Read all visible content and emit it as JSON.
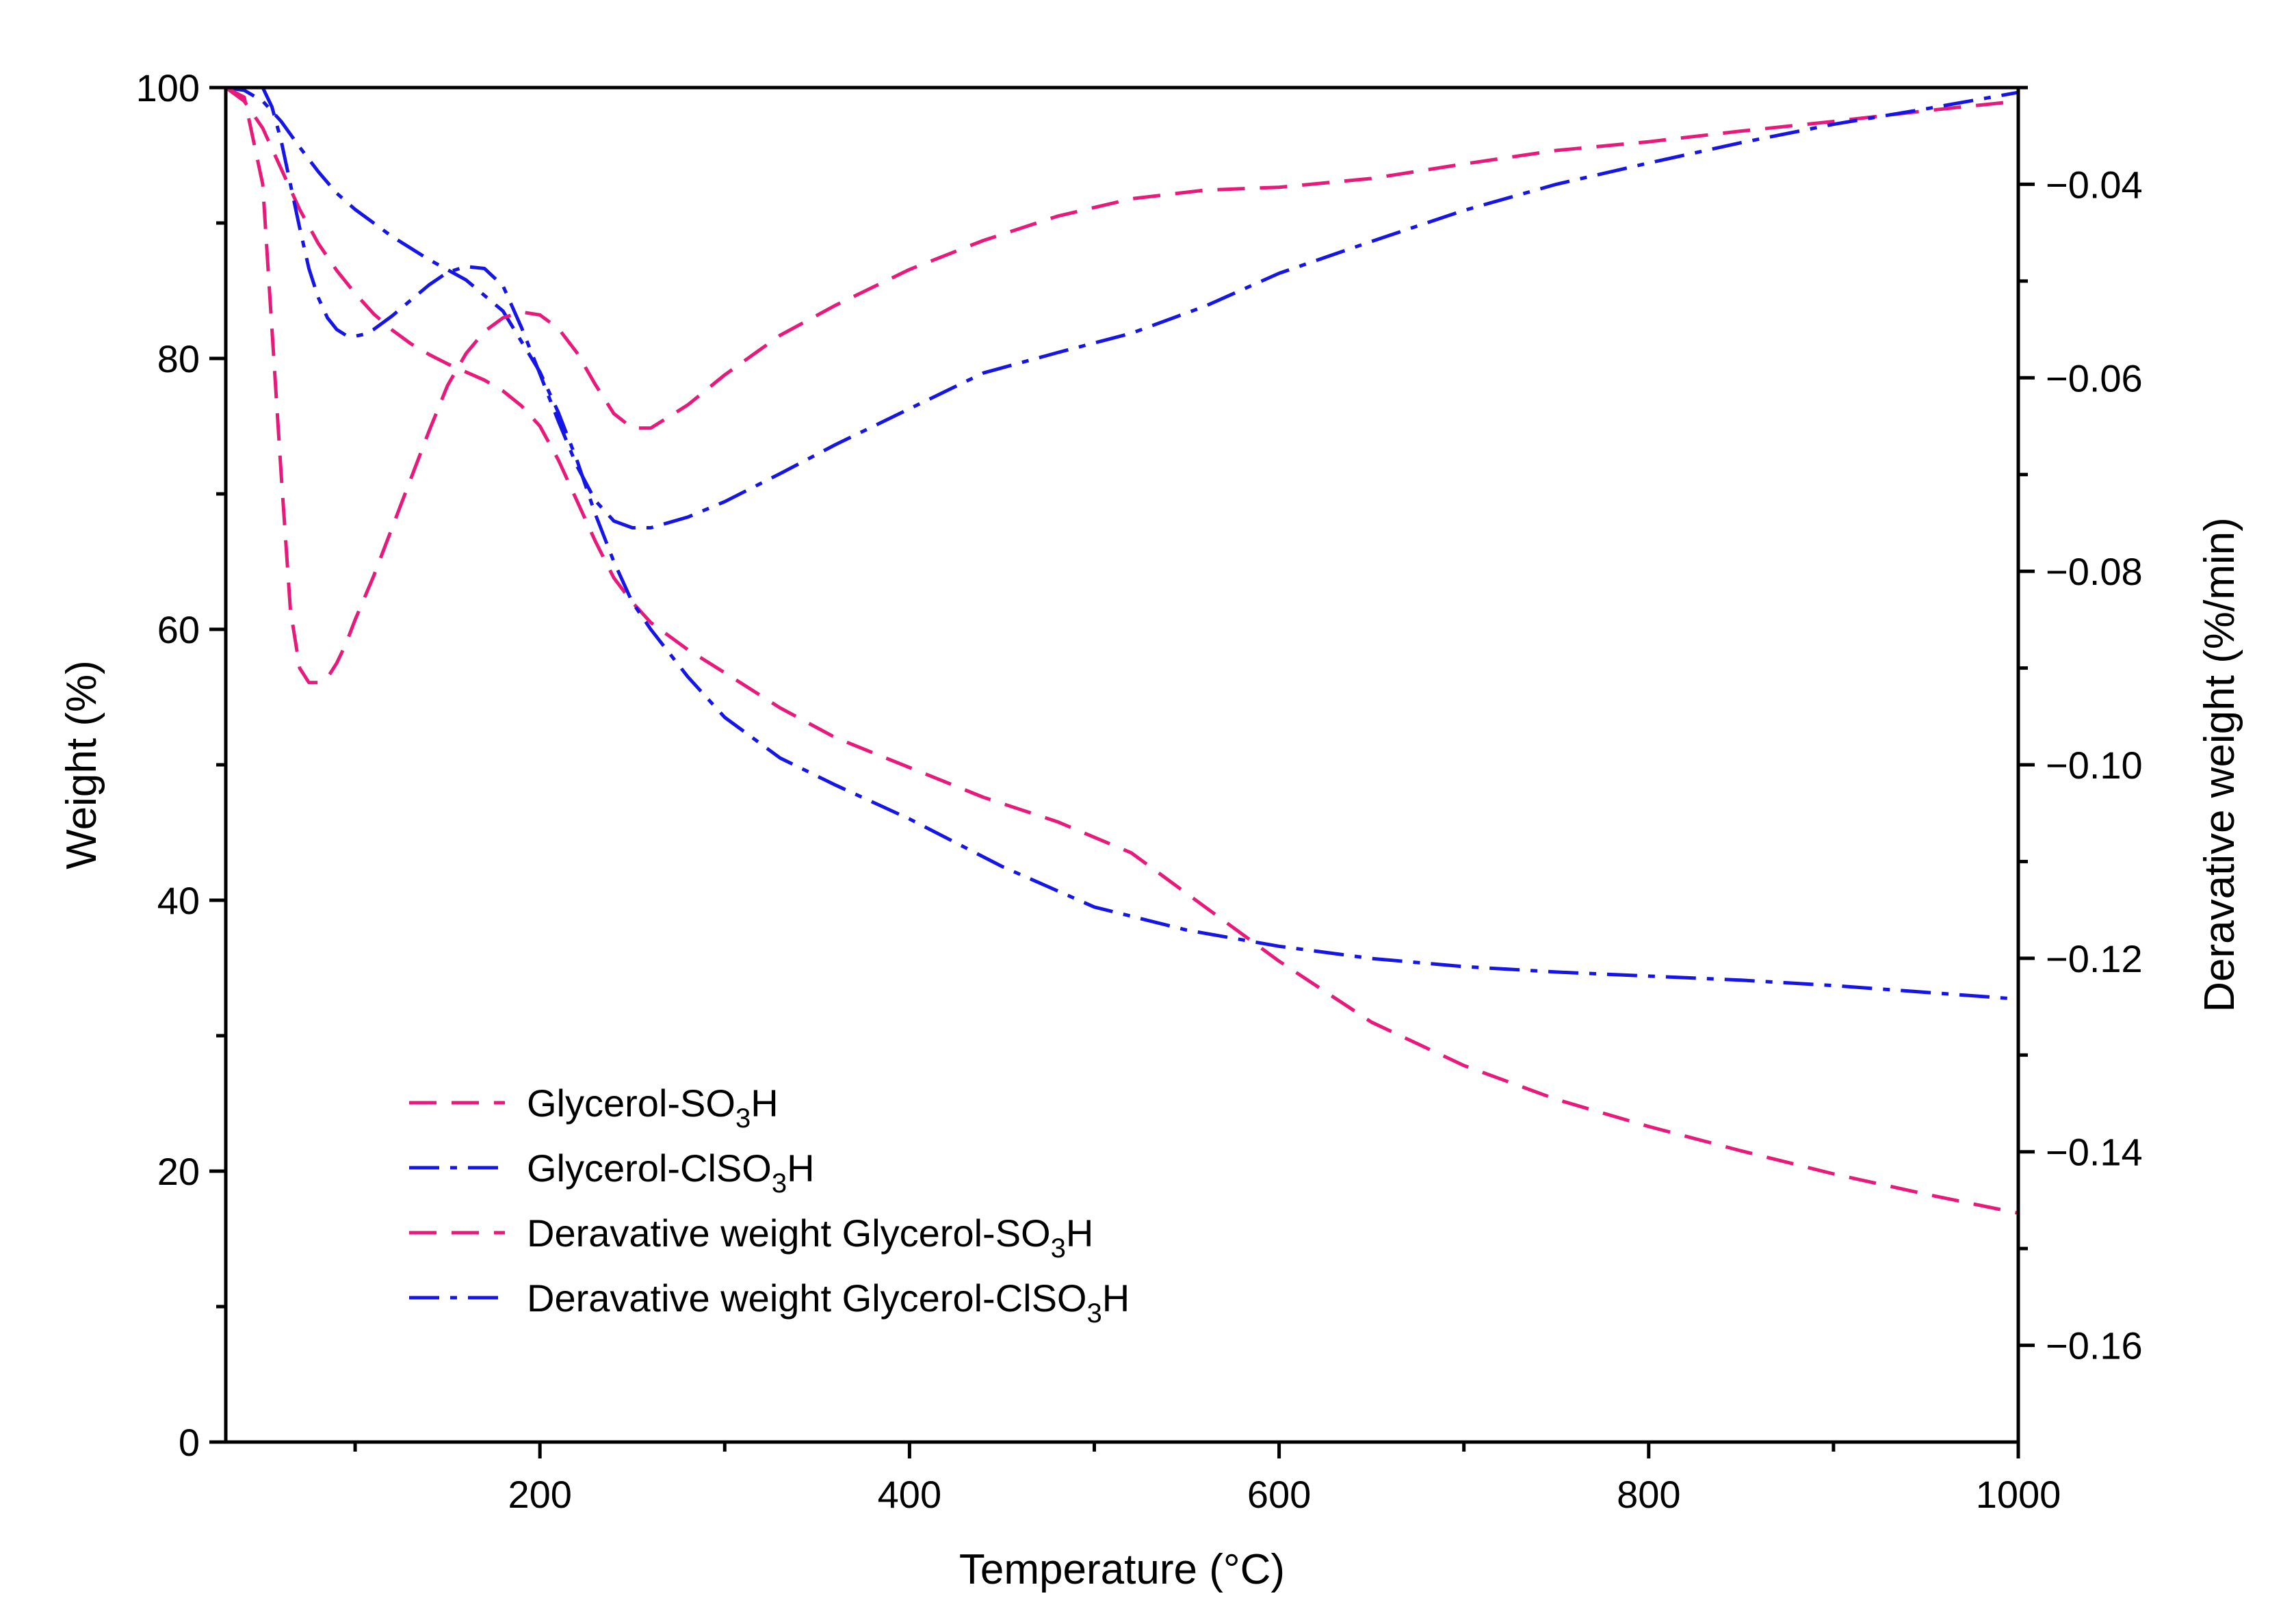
{
  "chart_data": {
    "type": "line",
    "title": "",
    "xlabel": "Temperature (°C)",
    "ylabel": "Weight (%)",
    "y2label": "Deravative weight (%/min)",
    "xlim": [
      30,
      1000
    ],
    "ylim": [
      0,
      100
    ],
    "y2lim": [
      -0.17,
      -0.03
    ],
    "xticks": [
      200,
      400,
      600,
      800,
      1000
    ],
    "xtick_labels": [
      "200",
      "400",
      "600",
      "800",
      "1000"
    ],
    "yticks": [
      0,
      20,
      40,
      60,
      80,
      100
    ],
    "ytick_labels": [
      "0",
      "20",
      "40",
      "60",
      "80",
      "100"
    ],
    "y2ticks": [
      -0.04,
      -0.06,
      -0.08,
      -0.1,
      -0.12,
      -0.14,
      -0.16
    ],
    "y2tick_labels": [
      "−0.04",
      "−0.06",
      "−0.08",
      "−0.10",
      "−0.12",
      "−0.14",
      "−0.16"
    ],
    "legend_position": "bottom-left",
    "series": [
      {
        "name": "Glycerol-SO3H",
        "label_main": "Glycerol-SO",
        "label_sub": "3",
        "label_tail": "H",
        "axis": "left",
        "color": "#e8197a",
        "dash": "dashed",
        "x": [
          30,
          40,
          50,
          60,
          70,
          80,
          90,
          100,
          110,
          120,
          130,
          140,
          150,
          160,
          170,
          180,
          190,
          200,
          210,
          220,
          230,
          240,
          250,
          260,
          280,
          300,
          330,
          360,
          400,
          440,
          480,
          520,
          550,
          580,
          600,
          650,
          700,
          750,
          800,
          850,
          900,
          950,
          1000
        ],
        "y": [
          100,
          99.0,
          97.0,
          94.0,
          91.0,
          88.5,
          86.5,
          84.8,
          83.3,
          82.1,
          81.1,
          80.3,
          79.6,
          79.0,
          78.4,
          77.6,
          76.5,
          75.0,
          72.5,
          69.5,
          66.5,
          63.8,
          62.0,
          60.5,
          58.5,
          56.8,
          54.2,
          52.0,
          49.8,
          47.6,
          45.8,
          43.5,
          40.5,
          37.5,
          35.5,
          31.0,
          27.8,
          25.3,
          23.3,
          21.5,
          19.8,
          18.3,
          16.9
        ]
      },
      {
        "name": "Glycerol-ClSO3H",
        "label_main": "Glycerol-ClSO",
        "label_sub": "3",
        "label_tail": "H",
        "axis": "left",
        "color": "#1515e8",
        "dash": "dashdot",
        "x": [
          30,
          40,
          50,
          60,
          70,
          80,
          90,
          100,
          120,
          140,
          160,
          180,
          200,
          210,
          220,
          230,
          240,
          250,
          260,
          280,
          300,
          330,
          360,
          400,
          450,
          500,
          550,
          600,
          650,
          700,
          750,
          800,
          850,
          900,
          950,
          1000
        ],
        "y": [
          100,
          99.8,
          99.0,
          97.5,
          95.6,
          93.8,
          92.2,
          91.0,
          89.0,
          87.3,
          85.8,
          83.5,
          79.0,
          76.0,
          72.5,
          68.5,
          65.0,
          62.0,
          60.0,
          56.5,
          53.5,
          50.5,
          48.5,
          46.0,
          42.5,
          39.5,
          37.8,
          36.6,
          35.7,
          35.1,
          34.7,
          34.4,
          34.1,
          33.7,
          33.2,
          32.7
        ]
      },
      {
        "name": "Deravative weight Glycerol-SO3H",
        "label_main": "Deravative weight Glycerol-SO",
        "label_sub": "3",
        "label_tail": "H",
        "axis": "right",
        "color": "#e8197a",
        "dash": "dashed",
        "x": [
          30,
          40,
          50,
          60,
          65,
          70,
          75,
          80,
          85,
          90,
          95,
          100,
          110,
          120,
          130,
          140,
          150,
          160,
          170,
          180,
          190,
          200,
          210,
          220,
          230,
          240,
          250,
          260,
          280,
          300,
          330,
          360,
          400,
          440,
          480,
          520,
          560,
          600,
          650,
          700,
          750,
          800,
          850,
          900,
          950,
          1000
        ],
        "y": [
          -0.03,
          -0.031,
          -0.04,
          -0.07,
          -0.084,
          -0.09,
          -0.0915,
          -0.0915,
          -0.091,
          -0.0895,
          -0.0875,
          -0.085,
          -0.0805,
          -0.0755,
          -0.0705,
          -0.0655,
          -0.0608,
          -0.0575,
          -0.0552,
          -0.0538,
          -0.0532,
          -0.0535,
          -0.0549,
          -0.0574,
          -0.0607,
          -0.0637,
          -0.0652,
          -0.0652,
          -0.0628,
          -0.0597,
          -0.0556,
          -0.0525,
          -0.0488,
          -0.0458,
          -0.0433,
          -0.0415,
          -0.0406,
          -0.0403,
          -0.0394,
          -0.0379,
          -0.0365,
          -0.0356,
          -0.0345,
          -0.0335,
          -0.0324,
          -0.0314
        ]
      },
      {
        "name": "Deravative weight Glycerol-ClSO3H",
        "label_main": "Deravative weight Glycerol-ClSO",
        "label_sub": "3",
        "label_tail": "H",
        "axis": "right",
        "color": "#1515e8",
        "dash": "dashdot",
        "x": [
          50,
          55,
          60,
          65,
          70,
          75,
          80,
          85,
          90,
          95,
          100,
          105,
          110,
          120,
          130,
          140,
          150,
          160,
          170,
          180,
          190,
          200,
          210,
          220,
          230,
          240,
          250,
          260,
          280,
          300,
          330,
          360,
          400,
          440,
          480,
          520,
          560,
          600,
          650,
          700,
          750,
          800,
          850,
          900,
          950,
          1000
        ],
        "y": [
          -0.03,
          -0.032,
          -0.0355,
          -0.04,
          -0.0445,
          -0.0487,
          -0.0517,
          -0.0538,
          -0.055,
          -0.0556,
          -0.0557,
          -0.0555,
          -0.055,
          -0.0536,
          -0.052,
          -0.0504,
          -0.0491,
          -0.0485,
          -0.0487,
          -0.0505,
          -0.0548,
          -0.0596,
          -0.0645,
          -0.0691,
          -0.0727,
          -0.0748,
          -0.0755,
          -0.0755,
          -0.0744,
          -0.0728,
          -0.0699,
          -0.0669,
          -0.0632,
          -0.0595,
          -0.0574,
          -0.0554,
          -0.0526,
          -0.0492,
          -0.0459,
          -0.0427,
          -0.04,
          -0.0378,
          -0.0357,
          -0.0338,
          -0.0322,
          -0.0305
        ]
      }
    ]
  }
}
